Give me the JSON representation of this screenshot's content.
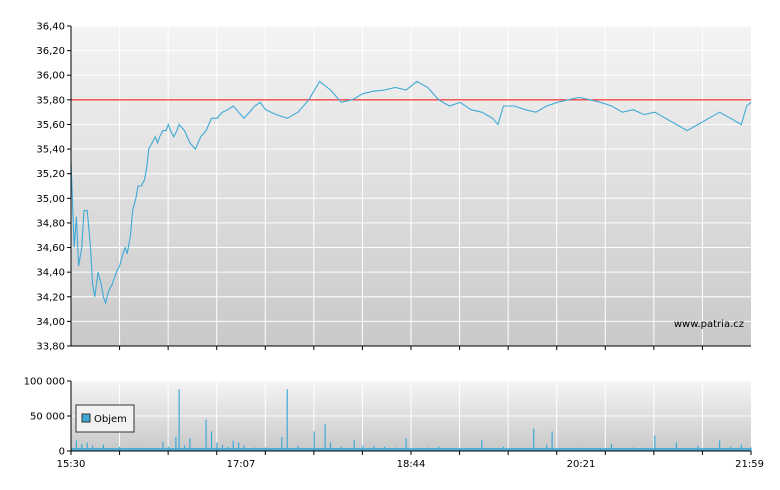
{
  "chart_data": [
    {
      "type": "line",
      "title": "",
      "xlabel": "",
      "ylabel": "",
      "ylim": [
        33.8,
        36.4
      ],
      "y_ticks": [
        "36,40",
        "36,20",
        "36,00",
        "35,80",
        "35,60",
        "35,40",
        "35,20",
        "35,00",
        "34,80",
        "34,60",
        "34,40",
        "34,20",
        "34,00",
        "33,80"
      ],
      "reference_line": {
        "value": 35.8,
        "color": "#ff0000"
      },
      "watermark": "www.patria.cz",
      "grid": true,
      "line_color": "#3fa9d5",
      "series": [
        {
          "x_minutes": [
            0,
            3,
            5,
            7,
            10,
            12,
            15,
            18,
            20,
            22,
            25,
            28,
            30,
            32,
            35,
            38,
            40,
            42,
            45,
            48,
            50,
            52,
            55,
            57,
            60,
            62,
            65,
            68,
            70,
            72,
            75,
            78,
            80,
            82,
            85,
            88,
            90,
            92,
            95,
            98,
            100,
            105,
            110,
            115,
            120,
            125,
            130,
            135,
            140,
            145,
            150,
            155,
            160,
            165,
            170,
            175,
            180,
            190,
            200,
            210,
            220,
            230,
            240,
            250,
            260,
            270,
            280,
            290,
            300,
            310,
            320,
            330,
            340,
            350,
            360,
            370,
            380,
            390,
            395,
            400,
            410,
            420,
            430,
            440,
            450,
            460,
            470,
            480,
            490,
            500,
            510,
            520,
            530,
            540,
            550,
            560,
            570,
            580,
            590,
            600,
            610,
            620,
            625,
            629
          ],
          "values": [
            35.3,
            34.6,
            34.85,
            34.45,
            34.6,
            34.9,
            34.9,
            34.6,
            34.3,
            34.2,
            34.4,
            34.3,
            34.2,
            34.15,
            34.25,
            34.3,
            34.35,
            34.4,
            34.45,
            34.55,
            34.6,
            34.55,
            34.7,
            34.9,
            35.0,
            35.1,
            35.1,
            35.15,
            35.25,
            35.4,
            35.45,
            35.5,
            35.45,
            35.5,
            35.55,
            35.55,
            35.6,
            35.55,
            35.5,
            35.55,
            35.6,
            35.55,
            35.45,
            35.4,
            35.5,
            35.55,
            35.65,
            35.65,
            35.7,
            35.72,
            35.75,
            35.7,
            35.65,
            35.7,
            35.75,
            35.78,
            35.72,
            35.68,
            35.65,
            35.7,
            35.8,
            35.95,
            35.88,
            35.78,
            35.8,
            35.85,
            35.87,
            35.88,
            35.9,
            35.88,
            35.95,
            35.9,
            35.8,
            35.75,
            35.78,
            35.72,
            35.7,
            35.65,
            35.6,
            35.75,
            35.75,
            35.72,
            35.7,
            35.75,
            35.78,
            35.8,
            35.82,
            35.8,
            35.78,
            35.75,
            35.7,
            35.72,
            35.68,
            35.7,
            35.65,
            35.6,
            35.55,
            35.6,
            35.65,
            35.7,
            35.65,
            35.6,
            35.75,
            35.78
          ]
        }
      ]
    },
    {
      "type": "bar",
      "title": "",
      "xlabel": "",
      "ylabel": "",
      "ylim": [
        0,
        100000
      ],
      "y_ticks": [
        "100 000",
        "50 000",
        "0"
      ],
      "x_ticks": [
        "15:30",
        "17:07",
        "18:44",
        "20:21",
        "21:59"
      ],
      "legend": {
        "label": "Objem",
        "placement": "left"
      },
      "grid": true,
      "bar_color": "#3fa9d5",
      "series": [
        {
          "name": "Objem",
          "x_minutes": [
            5,
            10,
            15,
            20,
            30,
            45,
            60,
            75,
            85,
            90,
            97,
            100,
            105,
            110,
            118,
            125,
            130,
            135,
            140,
            145,
            150,
            155,
            160,
            170,
            180,
            190,
            195,
            200,
            210,
            225,
            235,
            240,
            250,
            262,
            270,
            280,
            290,
            300,
            310,
            320,
            330,
            340,
            360,
            380,
            400,
            420,
            428,
            440,
            445,
            470,
            490,
            500,
            520,
            540,
            560,
            580,
            600,
            610,
            620,
            629
          ],
          "values": [
            15000,
            10000,
            12000,
            8000,
            9000,
            6000,
            5000,
            4000,
            13000,
            6000,
            20000,
            88000,
            8000,
            18000,
            3000,
            45000,
            28000,
            12000,
            9000,
            6000,
            15000,
            12000,
            8000,
            5000,
            5000,
            4000,
            20000,
            88000,
            7000,
            28000,
            38000,
            12000,
            6000,
            16000,
            8000,
            7000,
            6000,
            5000,
            18000,
            4000,
            5000,
            6000,
            4000,
            16000,
            6000,
            4000,
            32000,
            9000,
            28000,
            5000,
            4000,
            10000,
            5000,
            22000,
            12000,
            7000,
            15000,
            6000,
            9000,
            5000
          ]
        }
      ]
    }
  ]
}
